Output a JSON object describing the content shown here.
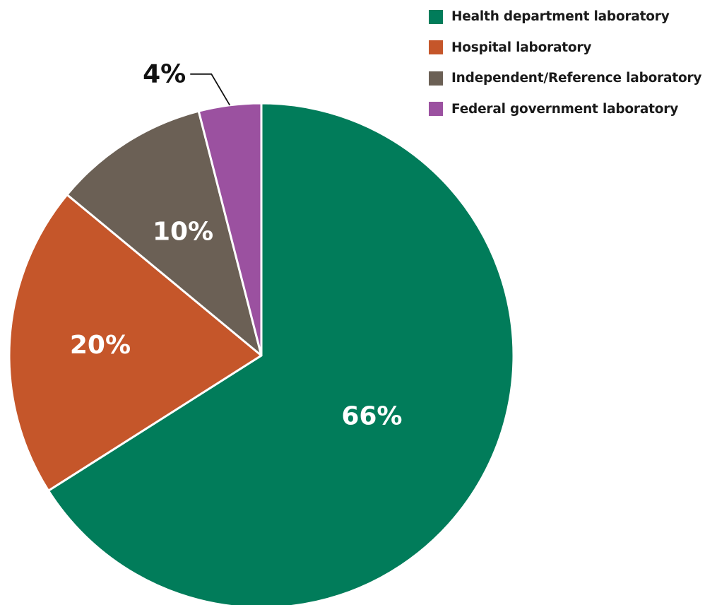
{
  "chart_data": {
    "type": "pie",
    "title": "",
    "slices": [
      {
        "name": "Health department laboratory",
        "value": 66,
        "label": "66%",
        "color": "#017c5a"
      },
      {
        "name": "Hospital laboratory",
        "value": 20,
        "label": "20%",
        "color": "#c5562a"
      },
      {
        "name": "Independent/Reference laboratory",
        "value": 10,
        "label": "10%",
        "color": "#6b6055"
      },
      {
        "name": "Federal government laboratory",
        "value": 4,
        "label": "4%",
        "color": "#9b51a0"
      }
    ],
    "start_angle": "12 o'clock",
    "direction": "clockwise",
    "legend_position": "top-right"
  }
}
